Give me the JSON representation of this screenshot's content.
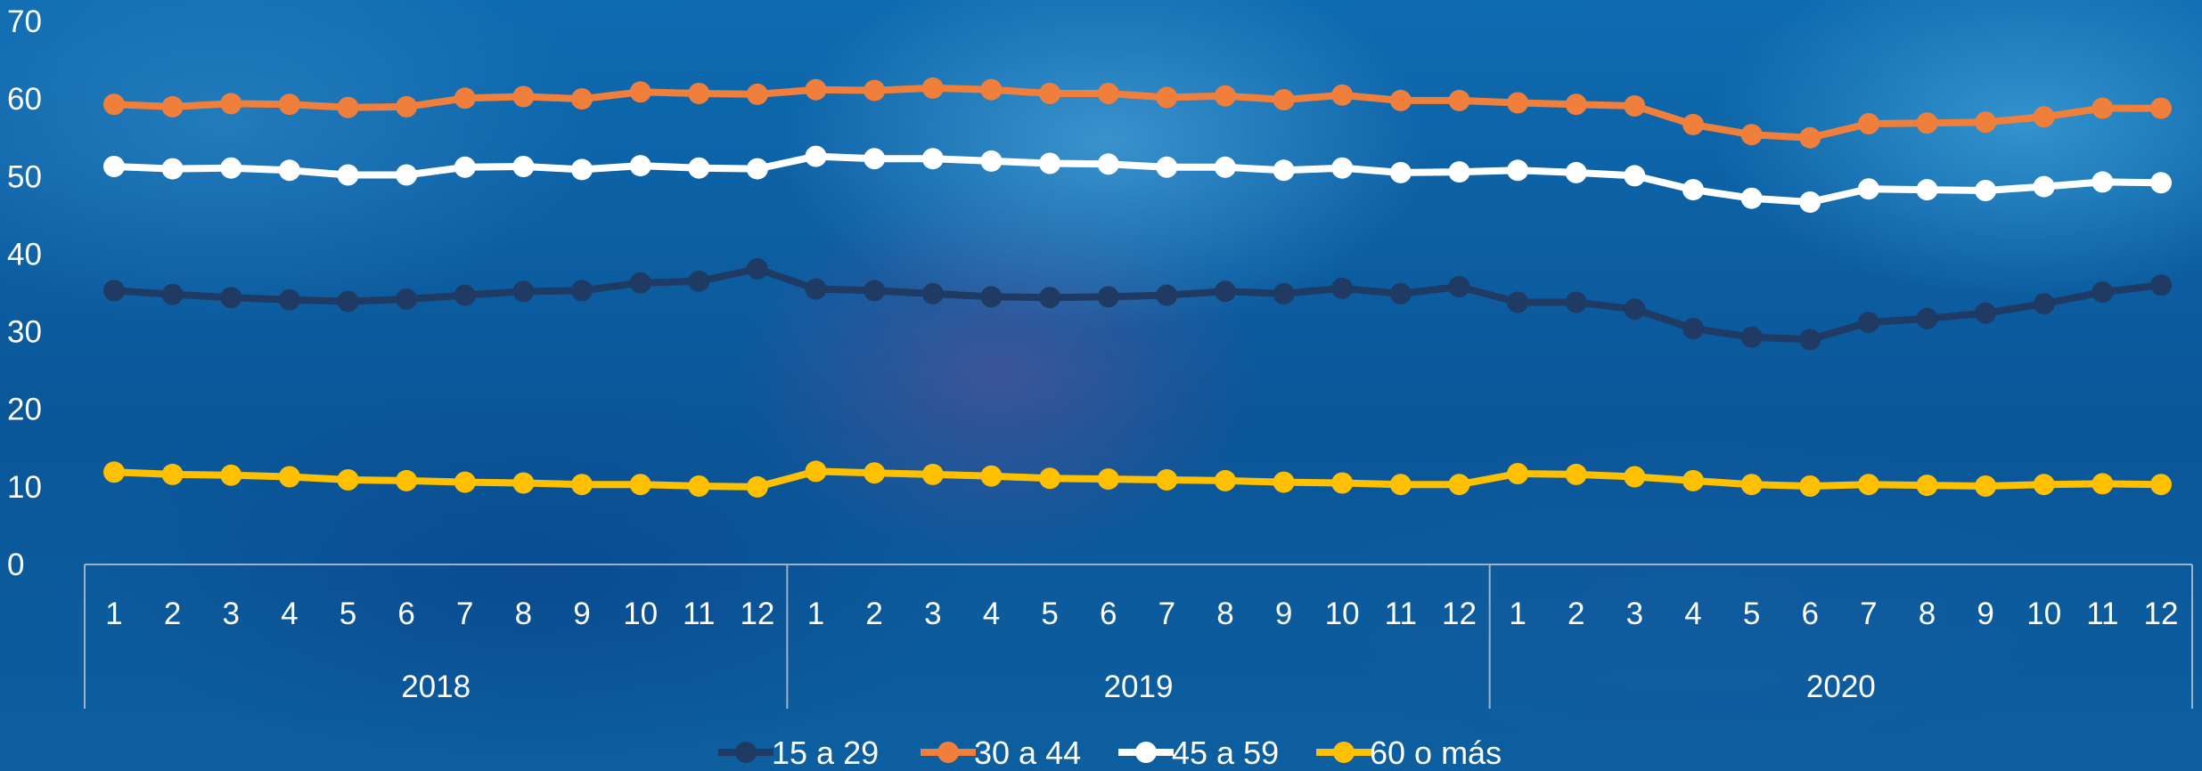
{
  "chart_data": {
    "type": "line",
    "title": "",
    "xlabel": "",
    "ylabel": "",
    "ylim": [
      0,
      70
    ],
    "yticks": [
      0,
      10,
      20,
      30,
      40,
      50,
      60,
      70
    ],
    "grid": false,
    "legend_position": "bottom",
    "years": [
      "2018",
      "2019",
      "2020"
    ],
    "months": [
      "1",
      "2",
      "3",
      "4",
      "5",
      "6",
      "7",
      "8",
      "9",
      "10",
      "11",
      "12"
    ],
    "series": [
      {
        "name": "15 a 29",
        "color": "#1f3a63",
        "values": [
          35.3,
          34.8,
          34.4,
          34.1,
          33.9,
          34.2,
          34.7,
          35.2,
          35.3,
          36.3,
          36.5,
          38.1,
          35.5,
          35.3,
          34.9,
          34.5,
          34.4,
          34.5,
          34.7,
          35.2,
          34.9,
          35.6,
          34.9,
          35.8,
          33.8,
          33.8,
          32.9,
          30.4,
          29.3,
          29.0,
          31.2,
          31.7,
          32.4,
          33.6,
          35.1,
          36.0
        ]
      },
      {
        "name": "30 a 44",
        "color": "#f07f3c",
        "values": [
          59.3,
          59.0,
          59.4,
          59.3,
          58.9,
          59.0,
          60.1,
          60.3,
          60.0,
          60.9,
          60.7,
          60.6,
          61.2,
          61.1,
          61.4,
          61.2,
          60.7,
          60.7,
          60.2,
          60.4,
          59.9,
          60.5,
          59.8,
          59.8,
          59.5,
          59.3,
          59.1,
          56.7,
          55.4,
          55.0,
          56.8,
          56.9,
          57.0,
          57.7,
          58.8,
          58.8
        ]
      },
      {
        "name": "45 a 59",
        "color": "#ffffff",
        "values": [
          51.3,
          51.0,
          51.1,
          50.8,
          50.2,
          50.2,
          51.2,
          51.3,
          50.9,
          51.4,
          51.1,
          51.0,
          52.6,
          52.3,
          52.3,
          52.0,
          51.7,
          51.6,
          51.2,
          51.2,
          50.8,
          51.1,
          50.5,
          50.6,
          50.8,
          50.5,
          50.1,
          48.3,
          47.2,
          46.7,
          48.4,
          48.3,
          48.2,
          48.7,
          49.3,
          49.2
        ]
      },
      {
        "name": "60 o más",
        "color": "#ffc000",
        "values": [
          11.9,
          11.6,
          11.5,
          11.3,
          10.9,
          10.8,
          10.6,
          10.5,
          10.3,
          10.3,
          10.1,
          10.0,
          12.0,
          11.8,
          11.6,
          11.4,
          11.1,
          11.0,
          10.9,
          10.8,
          10.6,
          10.5,
          10.3,
          10.3,
          11.7,
          11.6,
          11.3,
          10.8,
          10.3,
          10.1,
          10.3,
          10.2,
          10.1,
          10.3,
          10.4,
          10.3
        ]
      }
    ]
  }
}
